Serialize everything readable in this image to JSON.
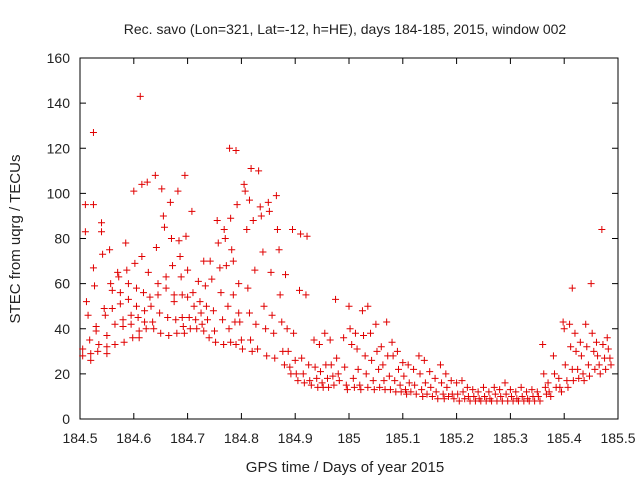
{
  "chart_data": {
    "type": "scatter",
    "title": "Rec. savo (Lon=321, Lat=-12, h=HE), days 184-185, 2015, window 002",
    "xlabel": "GPS time / Days of year 2015",
    "ylabel": "STEC from uqrg / TECUs",
    "xlim": [
      184.5,
      185.5
    ],
    "ylim": [
      0,
      160
    ],
    "xticks": [
      184.5,
      184.6,
      184.7,
      184.8,
      184.9,
      185,
      185.1,
      185.2,
      185.3,
      185.4,
      185.5
    ],
    "xtick_labels": [
      "184.5",
      "184.6",
      "184.7",
      "184.8",
      "184.9",
      "185",
      "185.1",
      "185.2",
      "185.3",
      "185.4",
      "185.5"
    ],
    "yticks": [
      0,
      20,
      40,
      60,
      80,
      100,
      120,
      140,
      160
    ],
    "ytick_labels": [
      "0",
      "20",
      "40",
      "60",
      "80",
      "100",
      "120",
      "140",
      "160"
    ],
    "grid": false,
    "marker": "plus",
    "color": "#e00000",
    "points": [
      [
        184.505,
        28
      ],
      [
        184.505,
        31
      ],
      [
        184.51,
        95
      ],
      [
        184.51,
        83
      ],
      [
        184.512,
        52
      ],
      [
        184.515,
        46
      ],
      [
        184.518,
        35
      ],
      [
        184.52,
        29
      ],
      [
        184.52,
        26
      ],
      [
        184.525,
        127
      ],
      [
        184.525,
        95
      ],
      [
        184.525,
        67
      ],
      [
        184.527,
        59
      ],
      [
        184.53,
        41
      ],
      [
        184.53,
        39
      ],
      [
        184.533,
        30
      ],
      [
        184.535,
        33
      ],
      [
        184.54,
        87
      ],
      [
        184.54,
        83
      ],
      [
        184.542,
        73
      ],
      [
        184.545,
        49
      ],
      [
        184.547,
        46
      ],
      [
        184.55,
        37
      ],
      [
        184.55,
        32
      ],
      [
        184.55,
        29
      ],
      [
        184.555,
        75
      ],
      [
        184.557,
        60
      ],
      [
        184.56,
        57
      ],
      [
        184.56,
        49
      ],
      [
        184.565,
        42
      ],
      [
        184.565,
        33
      ],
      [
        184.57,
        65
      ],
      [
        184.572,
        63
      ],
      [
        184.575,
        56
      ],
      [
        184.575,
        51
      ],
      [
        184.58,
        44
      ],
      [
        184.58,
        41
      ],
      [
        184.582,
        34
      ],
      [
        184.585,
        78
      ],
      [
        184.587,
        66
      ],
      [
        184.59,
        60
      ],
      [
        184.59,
        53
      ],
      [
        184.595,
        46
      ],
      [
        184.595,
        42
      ],
      [
        184.598,
        36
      ],
      [
        184.6,
        101
      ],
      [
        184.602,
        69
      ],
      [
        184.605,
        58
      ],
      [
        184.605,
        50
      ],
      [
        184.608,
        45
      ],
      [
        184.61,
        39
      ],
      [
        184.61,
        36
      ],
      [
        184.612,
        143
      ],
      [
        184.615,
        104
      ],
      [
        184.615,
        72
      ],
      [
        184.618,
        56
      ],
      [
        184.62,
        48
      ],
      [
        184.62,
        43
      ],
      [
        184.623,
        40
      ],
      [
        184.625,
        105
      ],
      [
        184.627,
        65
      ],
      [
        184.63,
        54
      ],
      [
        184.632,
        50
      ],
      [
        184.635,
        43
      ],
      [
        184.637,
        40
      ],
      [
        184.64,
        108
      ],
      [
        184.642,
        76
      ],
      [
        184.645,
        60
      ],
      [
        184.645,
        55
      ],
      [
        184.648,
        47
      ],
      [
        184.65,
        38
      ],
      [
        184.652,
        102
      ],
      [
        184.655,
        90
      ],
      [
        184.657,
        85
      ],
      [
        184.66,
        63
      ],
      [
        184.66,
        58
      ],
      [
        184.663,
        45
      ],
      [
        184.665,
        37
      ],
      [
        184.668,
        96
      ],
      [
        184.67,
        80
      ],
      [
        184.672,
        68
      ],
      [
        184.675,
        55
      ],
      [
        184.675,
        52
      ],
      [
        184.678,
        44
      ],
      [
        184.68,
        38
      ],
      [
        184.682,
        101
      ],
      [
        184.684,
        79
      ],
      [
        184.686,
        72
      ],
      [
        184.688,
        63
      ],
      [
        184.69,
        55
      ],
      [
        184.69,
        45
      ],
      [
        184.692,
        41
      ],
      [
        184.694,
        38
      ],
      [
        184.695,
        108
      ],
      [
        184.697,
        81
      ],
      [
        184.7,
        66
      ],
      [
        184.7,
        54
      ],
      [
        184.703,
        45
      ],
      [
        184.705,
        40
      ],
      [
        184.708,
        92
      ],
      [
        184.71,
        56
      ],
      [
        184.712,
        50
      ],
      [
        184.715,
        44
      ],
      [
        184.717,
        40
      ],
      [
        184.72,
        61
      ],
      [
        184.723,
        52
      ],
      [
        184.725,
        47
      ],
      [
        184.727,
        42
      ],
      [
        184.73,
        39
      ],
      [
        184.73,
        70
      ],
      [
        184.733,
        59
      ],
      [
        184.735,
        50
      ],
      [
        184.737,
        44
      ],
      [
        184.74,
        36
      ],
      [
        184.742,
        70
      ],
      [
        184.745,
        62
      ],
      [
        184.748,
        48
      ],
      [
        184.75,
        39
      ],
      [
        184.752,
        34
      ],
      [
        184.755,
        88
      ],
      [
        184.757,
        78
      ],
      [
        184.76,
        67
      ],
      [
        184.762,
        56
      ],
      [
        184.765,
        44
      ],
      [
        184.767,
        33
      ],
      [
        184.768,
        84
      ],
      [
        184.77,
        80
      ],
      [
        184.772,
        68
      ],
      [
        184.775,
        50
      ],
      [
        184.777,
        40
      ],
      [
        184.78,
        34
      ],
      [
        184.778,
        120
      ],
      [
        184.78,
        89
      ],
      [
        184.782,
        75
      ],
      [
        184.785,
        70
      ],
      [
        184.785,
        55
      ],
      [
        184.788,
        43
      ],
      [
        184.79,
        33
      ],
      [
        184.79,
        119
      ],
      [
        184.792,
        95
      ],
      [
        184.795,
        60
      ],
      [
        184.795,
        47
      ],
      [
        184.797,
        43
      ],
      [
        184.8,
        35
      ],
      [
        184.802,
        31
      ],
      [
        184.805,
        104
      ],
      [
        184.807,
        101
      ],
      [
        184.81,
        84
      ],
      [
        184.812,
        58
      ],
      [
        184.815,
        47
      ],
      [
        184.817,
        35
      ],
      [
        184.82,
        30
      ],
      [
        184.815,
        97
      ],
      [
        184.818,
        111
      ],
      [
        184.822,
        88
      ],
      [
        184.825,
        66
      ],
      [
        184.827,
        42
      ],
      [
        184.83,
        31
      ],
      [
        184.832,
        110
      ],
      [
        184.835,
        94
      ],
      [
        184.837,
        90
      ],
      [
        184.84,
        74
      ],
      [
        184.842,
        50
      ],
      [
        184.845,
        40
      ],
      [
        184.847,
        28
      ],
      [
        184.85,
        96
      ],
      [
        184.852,
        92
      ],
      [
        184.855,
        65
      ],
      [
        184.857,
        46
      ],
      [
        184.86,
        38
      ],
      [
        184.862,
        27
      ],
      [
        184.865,
        99
      ],
      [
        184.867,
        84
      ],
      [
        184.87,
        75
      ],
      [
        184.872,
        55
      ],
      [
        184.875,
        43
      ],
      [
        184.877,
        30
      ],
      [
        184.88,
        24
      ],
      [
        184.882,
        64
      ],
      [
        184.885,
        40
      ],
      [
        184.887,
        30
      ],
      [
        184.89,
        23
      ],
      [
        184.892,
        20
      ],
      [
        184.895,
        84
      ],
      [
        184.897,
        38
      ],
      [
        184.9,
        26
      ],
      [
        184.902,
        20
      ],
      [
        184.905,
        17
      ],
      [
        184.908,
        57
      ],
      [
        184.91,
        82
      ],
      [
        184.912,
        27
      ],
      [
        184.915,
        20
      ],
      [
        184.917,
        16
      ],
      [
        184.92,
        55
      ],
      [
        184.922,
        81
      ],
      [
        184.925,
        24
      ],
      [
        184.927,
        17
      ],
      [
        184.93,
        15
      ],
      [
        184.935,
        35
      ],
      [
        184.937,
        23
      ],
      [
        184.94,
        18
      ],
      [
        184.942,
        14
      ],
      [
        184.945,
        33
      ],
      [
        184.947,
        21
      ],
      [
        184.95,
        16
      ],
      [
        184.952,
        14
      ],
      [
        184.955,
        38
      ],
      [
        184.957,
        24
      ],
      [
        184.96,
        18
      ],
      [
        184.962,
        14
      ],
      [
        184.965,
        35
      ],
      [
        184.967,
        24
      ],
      [
        184.97,
        19
      ],
      [
        184.972,
        15
      ],
      [
        184.975,
        53
      ],
      [
        184.977,
        27
      ],
      [
        184.98,
        20
      ],
      [
        184.982,
        17
      ],
      [
        184.99,
        36
      ],
      [
        184.992,
        23
      ],
      [
        184.995,
        15
      ],
      [
        184.997,
        13
      ],
      [
        185.0,
        50
      ],
      [
        185.002,
        40
      ],
      [
        185.005,
        33
      ],
      [
        185.008,
        18
      ],
      [
        185.01,
        14
      ],
      [
        185.012,
        38
      ],
      [
        185.015,
        31
      ],
      [
        185.017,
        22
      ],
      [
        185.02,
        15
      ],
      [
        185.022,
        13
      ],
      [
        185.025,
        48
      ],
      [
        185.027,
        37
      ],
      [
        185.03,
        28
      ],
      [
        185.032,
        20
      ],
      [
        185.035,
        14
      ],
      [
        185.035,
        50
      ],
      [
        185.04,
        38
      ],
      [
        185.042,
        26
      ],
      [
        185.045,
        17
      ],
      [
        185.047,
        13
      ],
      [
        185.05,
        42
      ],
      [
        185.052,
        30
      ],
      [
        185.055,
        22
      ],
      [
        185.057,
        14
      ],
      [
        185.06,
        32
      ],
      [
        185.063,
        24
      ],
      [
        185.065,
        17
      ],
      [
        185.067,
        13
      ],
      [
        185.07,
        43
      ],
      [
        185.072,
        28
      ],
      [
        185.075,
        19
      ],
      [
        185.077,
        13
      ],
      [
        185.08,
        34
      ],
      [
        185.082,
        28
      ],
      [
        185.085,
        17
      ],
      [
        185.087,
        12
      ],
      [
        185.09,
        30
      ],
      [
        185.092,
        22
      ],
      [
        185.095,
        15
      ],
      [
        185.097,
        12
      ],
      [
        185.1,
        25
      ],
      [
        185.102,
        19
      ],
      [
        185.105,
        13
      ],
      [
        185.107,
        11
      ],
      [
        185.11,
        24
      ],
      [
        185.112,
        16
      ],
      [
        185.115,
        12
      ],
      [
        185.12,
        22
      ],
      [
        185.122,
        15
      ],
      [
        185.125,
        11
      ],
      [
        185.13,
        28
      ],
      [
        185.132,
        20
      ],
      [
        185.135,
        13
      ],
      [
        185.137,
        10
      ],
      [
        185.14,
        26
      ],
      [
        185.142,
        16
      ],
      [
        185.145,
        11
      ],
      [
        185.15,
        21
      ],
      [
        185.152,
        14
      ],
      [
        185.155,
        10
      ],
      [
        185.16,
        18
      ],
      [
        185.162,
        12
      ],
      [
        185.165,
        9
      ],
      [
        185.17,
        24
      ],
      [
        185.172,
        16
      ],
      [
        185.175,
        11
      ],
      [
        185.177,
        9
      ],
      [
        185.18,
        20
      ],
      [
        185.182,
        14
      ],
      [
        185.185,
        10
      ],
      [
        185.19,
        17
      ],
      [
        185.192,
        11
      ],
      [
        185.195,
        9
      ],
      [
        185.2,
        16
      ],
      [
        185.202,
        11
      ],
      [
        185.205,
        8
      ],
      [
        185.21,
        17
      ],
      [
        185.212,
        12
      ],
      [
        185.215,
        9
      ],
      [
        185.22,
        14
      ],
      [
        185.222,
        10
      ],
      [
        185.225,
        8
      ],
      [
        185.23,
        13
      ],
      [
        185.232,
        10
      ],
      [
        185.235,
        8
      ],
      [
        185.24,
        12
      ],
      [
        185.242,
        9
      ],
      [
        185.245,
        8
      ],
      [
        185.25,
        14
      ],
      [
        185.252,
        10
      ],
      [
        185.255,
        8
      ],
      [
        185.26,
        12
      ],
      [
        185.262,
        9
      ],
      [
        185.265,
        8
      ],
      [
        185.27,
        14
      ],
      [
        185.272,
        11
      ],
      [
        185.275,
        8
      ],
      [
        185.28,
        13
      ],
      [
        185.282,
        10
      ],
      [
        185.285,
        8
      ],
      [
        185.29,
        16
      ],
      [
        185.292,
        11
      ],
      [
        185.295,
        8
      ],
      [
        185.3,
        13
      ],
      [
        185.302,
        10
      ],
      [
        185.305,
        8
      ],
      [
        185.31,
        12
      ],
      [
        185.312,
        9
      ],
      [
        185.315,
        8
      ],
      [
        185.32,
        14
      ],
      [
        185.322,
        10
      ],
      [
        185.325,
        8
      ],
      [
        185.33,
        12
      ],
      [
        185.332,
        9
      ],
      [
        185.335,
        8
      ],
      [
        185.34,
        13
      ],
      [
        185.342,
        10
      ],
      [
        185.345,
        8
      ],
      [
        185.35,
        12
      ],
      [
        185.352,
        10
      ],
      [
        185.355,
        8
      ],
      [
        185.36,
        33
      ],
      [
        185.362,
        20
      ],
      [
        185.365,
        14
      ],
      [
        185.367,
        11
      ],
      [
        185.37,
        16
      ],
      [
        185.372,
        12
      ],
      [
        185.375,
        10
      ],
      [
        185.38,
        28
      ],
      [
        185.382,
        20
      ],
      [
        185.385,
        14
      ],
      [
        185.39,
        18
      ],
      [
        185.392,
        14
      ],
      [
        185.395,
        12
      ],
      [
        185.398,
        43
      ],
      [
        185.4,
        40
      ],
      [
        185.402,
        24
      ],
      [
        185.405,
        17
      ],
      [
        185.407,
        14
      ],
      [
        185.41,
        42
      ],
      [
        185.412,
        32
      ],
      [
        185.415,
        58
      ],
      [
        185.415,
        22
      ],
      [
        185.417,
        17
      ],
      [
        185.42,
        38
      ],
      [
        185.422,
        30
      ],
      [
        185.425,
        22
      ],
      [
        185.427,
        18
      ],
      [
        185.43,
        34
      ],
      [
        185.432,
        28
      ],
      [
        185.435,
        20
      ],
      [
        185.437,
        17
      ],
      [
        185.44,
        42
      ],
      [
        185.442,
        32
      ],
      [
        185.445,
        24
      ],
      [
        185.447,
        19
      ],
      [
        185.45,
        60
      ],
      [
        185.452,
        38
      ],
      [
        185.455,
        30
      ],
      [
        185.457,
        22
      ],
      [
        185.46,
        34
      ],
      [
        185.462,
        28
      ],
      [
        185.465,
        24
      ],
      [
        185.467,
        20
      ],
      [
        185.47,
        84
      ],
      [
        185.472,
        33
      ],
      [
        185.475,
        27
      ],
      [
        185.477,
        22
      ],
      [
        185.48,
        36
      ],
      [
        185.482,
        31
      ],
      [
        185.485,
        27
      ],
      [
        185.487,
        24
      ]
    ]
  }
}
